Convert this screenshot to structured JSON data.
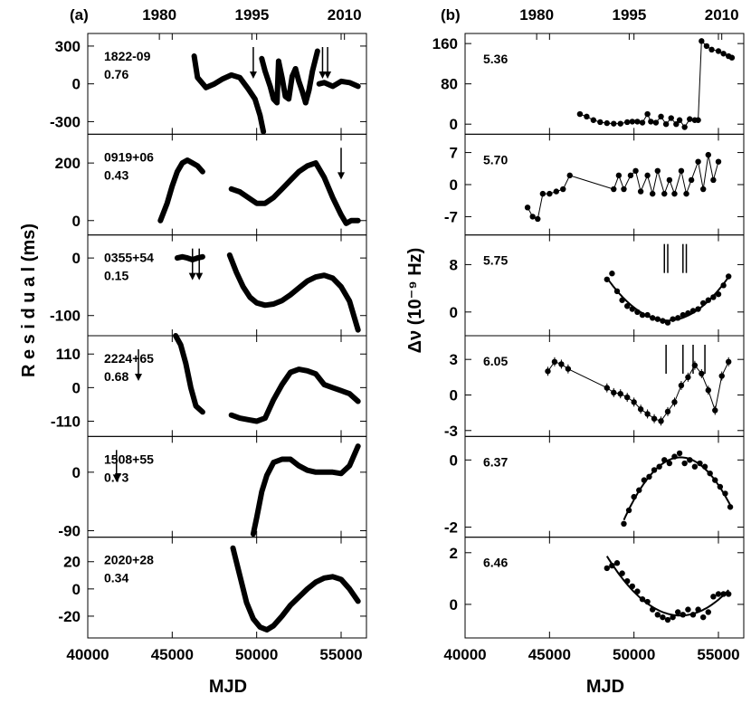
{
  "chart_data": {
    "type": "scatter",
    "left_column": {
      "label": "(a)",
      "ylabel": "R e s i d u a l  (ms)",
      "xlabel": "MJD",
      "xlim": [
        40000,
        56500
      ],
      "x_ticks": [
        40000,
        45000,
        50000,
        55000
      ],
      "x_tick_labels": [
        "40000",
        "45000",
        "50000",
        "55000"
      ],
      "top_ticks": [
        44239,
        49718,
        55197
      ],
      "top_tick_labels": [
        "1980",
        "1995",
        "2010"
      ],
      "panels": [
        {
          "name": "1822-09",
          "value": "0.76",
          "ylim": [
            -400,
            400
          ],
          "yticks": [
            300,
            0,
            -300
          ],
          "ytick_labels": [
            "300",
            "0",
            "-300"
          ],
          "arrows_down": [
            49800,
            53900,
            54200
          ],
          "segments": [
            {
              "x": [
                46300,
                46500,
                47000,
                47500,
                48000,
                48500,
                49000,
                49500,
                49900,
                50200,
                50400
              ],
              "y": [
                220,
                50,
                -30,
                0,
                40,
                70,
                50,
                -40,
                -120,
                -250,
                -380
              ]
            },
            {
              "x": [
                50300,
                50500,
                50800,
                51000,
                51200,
                51300
              ],
              "y": [
                200,
                100,
                -20,
                -120,
                -150,
                180
              ]
            },
            {
              "x": [
                51300,
                51500,
                51700,
                51900,
                52100,
                52300
              ],
              "y": [
                180,
                50,
                -100,
                -120,
                60,
                120
              ]
            },
            {
              "x": [
                52300,
                52500,
                52700,
                52900
              ],
              "y": [
                120,
                20,
                -60,
                -150
              ]
            },
            {
              "x": [
                52900,
                53100,
                53300,
                53600
              ],
              "y": [
                -150,
                -50,
                100,
                260
              ]
            },
            {
              "x": [
                53700,
                54000,
                54500,
                55000,
                55500,
                56000
              ],
              "y": [
                0,
                10,
                -20,
                20,
                10,
                -20
              ]
            }
          ]
        },
        {
          "name": "0919+06",
          "value": "0.43",
          "ylim": [
            -50,
            300
          ],
          "yticks": [
            200,
            0
          ],
          "ytick_labels": [
            "200",
            "0"
          ],
          "arrows_down": [
            55000
          ],
          "segments": [
            {
              "x": [
                44300,
                44700,
                45000,
                45300,
                45600,
                45900,
                46200,
                46500,
                46800
              ],
              "y": [
                0,
                60,
                120,
                170,
                200,
                210,
                200,
                190,
                170
              ]
            },
            {
              "x": [
                48500,
                49000,
                49500,
                50000,
                50500,
                51000,
                51500,
                52000,
                52500,
                53000,
                53500,
                54000,
                54500,
                55000,
                55300,
                55600,
                56000
              ],
              "y": [
                110,
                100,
                80,
                60,
                60,
                80,
                110,
                140,
                170,
                190,
                200,
                150,
                80,
                20,
                -10,
                0,
                0
              ]
            }
          ]
        },
        {
          "name": "0355+54",
          "value": "0.15",
          "ylim": [
            -135,
            40
          ],
          "yticks": [
            0,
            -100
          ],
          "ytick_labels": [
            "0",
            "-100"
          ],
          "arrows_down": [
            46200,
            46600
          ],
          "segments": [
            {
              "x": [
                45300,
                45600,
                45900,
                46200,
                46500,
                46800
              ],
              "y": [
                0,
                2,
                0,
                -3,
                0,
                2
              ]
            },
            {
              "x": [
                48400,
                48800,
                49200,
                49600,
                50000,
                50500,
                51000,
                51500,
                52000,
                52500,
                53000,
                53500,
                54000,
                54500,
                55000,
                55500,
                56000
              ],
              "y": [
                5,
                -25,
                -50,
                -68,
                -78,
                -82,
                -80,
                -74,
                -64,
                -52,
                -40,
                -33,
                -30,
                -35,
                -50,
                -75,
                -125
              ]
            }
          ]
        },
        {
          "name": "2224+65",
          "value": "0.68",
          "ylim": [
            -160,
            170
          ],
          "yticks": [
            110,
            0,
            -110
          ],
          "ytick_labels": [
            "110",
            "0",
            "-110"
          ],
          "arrows_down": [
            43000
          ],
          "segments": [
            {
              "x": [
                45200,
                45500,
                45800,
                46100,
                46400,
                46800
              ],
              "y": [
                170,
                140,
                80,
                0,
                -60,
                -80
              ]
            },
            {
              "x": [
                48500,
                49000,
                49500,
                50000,
                50500,
                51000,
                51500,
                52000,
                52500,
                53000,
                53500,
                54000,
                54500,
                55000,
                55500,
                56000
              ],
              "y": [
                -90,
                -100,
                -105,
                -110,
                -100,
                -40,
                10,
                50,
                60,
                55,
                45,
                10,
                0,
                -10,
                -20,
                -45
              ]
            }
          ]
        },
        {
          "name": "1508+55",
          "value": "0.73",
          "ylim": [
            -100,
            55
          ],
          "yticks": [
            0,
            -90
          ],
          "ytick_labels": [
            "0",
            "-90"
          ],
          "arrows_down": [
            41700
          ],
          "segments": [
            {
              "x": [
                49800,
                50000,
                50300,
                50600,
                51000,
                51500,
                52000,
                52500,
                53000,
                53500,
                54000,
                54500,
                55000,
                55500,
                56000
              ],
              "y": [
                -95,
                -70,
                -30,
                -5,
                15,
                20,
                20,
                10,
                3,
                0,
                0,
                0,
                -2,
                10,
                40
              ]
            }
          ]
        },
        {
          "name": "2020+28",
          "value": "0.34",
          "ylim": [
            -36,
            38
          ],
          "yticks": [
            20,
            0,
            -20
          ],
          "ytick_labels": [
            "20",
            "0",
            "-20"
          ],
          "arrows_down": [],
          "segments": [
            {
              "x": [
                48600,
                49000,
                49400,
                49800,
                50200,
                50600,
                51000,
                51500,
                52000,
                52500,
                53000,
                53500,
                54000,
                54500,
                55000,
                55500,
                56000
              ],
              "y": [
                30,
                10,
                -10,
                -22,
                -28,
                -30,
                -27,
                -20,
                -12,
                -6,
                0,
                5,
                8,
                9,
                7,
                0,
                -9
              ]
            }
          ]
        }
      ]
    },
    "right_column": {
      "label": "(b)",
      "ylabel": "Δν (10⁻⁹ Hz)",
      "xlabel": "MJD",
      "xlim": [
        40000,
        56500
      ],
      "x_ticks": [
        40000,
        45000,
        50000,
        55000
      ],
      "x_tick_labels": [
        "40000",
        "45000",
        "50000",
        "55000"
      ],
      "top_ticks": [
        44239,
        49718,
        55197
      ],
      "top_tick_labels": [
        "1980",
        "1995",
        "2010"
      ],
      "panels": [
        {
          "value": "5.36",
          "ylim": [
            -20,
            180
          ],
          "yticks": [
            160,
            80,
            0
          ],
          "ytick_labels": [
            "160",
            "80",
            "0"
          ],
          "connect": true,
          "fit": false,
          "errorbars": false,
          "markers": [],
          "x": [
            46800,
            47200,
            47600,
            48000,
            48400,
            48800,
            49200,
            49600,
            49900,
            50200,
            50500,
            50800,
            51000,
            51300,
            51600,
            51900,
            52200,
            52500,
            52700,
            53000,
            53300,
            53600,
            53800,
            54000,
            54300,
            54600,
            55000,
            55300,
            55600,
            55800
          ],
          "y": [
            20,
            15,
            8,
            4,
            2,
            1,
            1,
            4,
            5,
            5,
            3,
            20,
            5,
            3,
            15,
            0,
            12,
            0,
            8,
            -6,
            10,
            8,
            8,
            165,
            155,
            148,
            145,
            140,
            135,
            132
          ]
        },
        {
          "value": "5.70",
          "ylim": [
            -11,
            11
          ],
          "yticks": [
            7,
            0,
            -7
          ],
          "ytick_labels": [
            "7",
            "0",
            "-7"
          ],
          "connect": true,
          "fit": false,
          "errorbars": false,
          "markers": [],
          "x": [
            43700,
            44000,
            44300,
            44600,
            45000,
            45400,
            45800,
            46200,
            48800,
            49100,
            49400,
            49800,
            50100,
            50400,
            50800,
            51100,
            51400,
            51800,
            52100,
            52400,
            52800,
            53100,
            53400,
            53800,
            54100,
            54400,
            54700,
            55000
          ],
          "y": [
            -5,
            -7,
            -7.5,
            -2,
            -2,
            -1.5,
            -1,
            2,
            -1,
            2,
            -1,
            2,
            3,
            -1.5,
            2,
            -2,
            3,
            -2,
            1,
            -2,
            3,
            -2,
            1,
            5,
            -1,
            6.5,
            1,
            5
          ]
        },
        {
          "value": "5.75",
          "ylim": [
            -4,
            13
          ],
          "yticks": [
            8,
            0
          ],
          "ytick_labels": [
            "8",
            "0"
          ],
          "connect": false,
          "fit": true,
          "errorbars": false,
          "markers": [
            51800,
            52000,
            52900,
            53100
          ],
          "x": [
            48400,
            48700,
            49000,
            49300,
            49600,
            49900,
            50200,
            50500,
            50800,
            51100,
            51400,
            51700,
            52000,
            52300,
            52600,
            52900,
            53200,
            53500,
            53800,
            54100,
            54400,
            54700,
            55000,
            55300,
            55600
          ],
          "y": [
            5.5,
            6.5,
            3.5,
            2,
            1,
            0.5,
            0,
            -0.5,
            -0.5,
            -1,
            -1.2,
            -1.5,
            -1.8,
            -1.2,
            -1,
            -0.5,
            -0.2,
            0.2,
            0.5,
            1.5,
            2,
            2.5,
            3,
            4.5,
            6
          ]
        },
        {
          "value": "6.05",
          "ylim": [
            -3.5,
            5
          ],
          "yticks": [
            3,
            0,
            -3
          ],
          "ytick_labels": [
            "3",
            "0",
            "-3"
          ],
          "connect": true,
          "fit": false,
          "errorbars": true,
          "markers": [
            51900,
            52900,
            53500,
            54200
          ],
          "x": [
            44900,
            45300,
            45700,
            46100,
            48400,
            48800,
            49200,
            49600,
            50000,
            50400,
            50800,
            51200,
            51600,
            52000,
            52400,
            52800,
            53200,
            53600,
            54000,
            54400,
            54800,
            55200,
            55600
          ],
          "y": [
            2,
            2.8,
            2.6,
            2.2,
            0.6,
            0.2,
            0.1,
            -0.2,
            -0.6,
            -1.2,
            -1.6,
            -2,
            -2.2,
            -1.4,
            -0.6,
            0.8,
            1.5,
            2.5,
            1.8,
            0.4,
            -1.3,
            1.6,
            2.8
          ]
        },
        {
          "value": "6.37",
          "ylim": [
            -2.3,
            0.7
          ],
          "yticks": [
            0,
            -2
          ],
          "ytick_labels": [
            "0",
            "-2"
          ],
          "connect": false,
          "fit": true,
          "errorbars": false,
          "markers": [],
          "x": [
            49400,
            49700,
            50000,
            50300,
            50600,
            50900,
            51200,
            51500,
            51800,
            52100,
            52400,
            52700,
            53000,
            53300,
            53600,
            53900,
            54200,
            54500,
            54800,
            55100,
            55400,
            55700
          ],
          "y": [
            -1.9,
            -1.5,
            -1.1,
            -0.9,
            -0.6,
            -0.5,
            -0.3,
            -0.2,
            0,
            -0.1,
            0.1,
            0.2,
            -0.1,
            0,
            -0.2,
            -0.1,
            -0.2,
            -0.4,
            -0.6,
            -0.8,
            -1,
            -1.4
          ]
        },
        {
          "value": "6.46",
          "ylim": [
            -1.3,
            2.6
          ],
          "yticks": [
            2,
            0
          ],
          "ytick_labels": [
            "2",
            "0"
          ],
          "connect": false,
          "fit": true,
          "errorbars": false,
          "markers": [],
          "x": [
            48400,
            48700,
            49000,
            49300,
            49600,
            49900,
            50200,
            50500,
            50800,
            51100,
            51400,
            51700,
            52000,
            52300,
            52600,
            52900,
            53200,
            53500,
            53800,
            54100,
            54400,
            54700,
            55000,
            55300,
            55600
          ],
          "y": [
            1.4,
            1.5,
            1.6,
            1.2,
            0.9,
            0.7,
            0.5,
            0.2,
            0.1,
            -0.2,
            -0.4,
            -0.5,
            -0.6,
            -0.5,
            -0.3,
            -0.4,
            -0.2,
            -0.4,
            -0.2,
            -0.5,
            -0.3,
            0.3,
            0.4,
            0.4,
            0.4
          ]
        }
      ]
    }
  }
}
